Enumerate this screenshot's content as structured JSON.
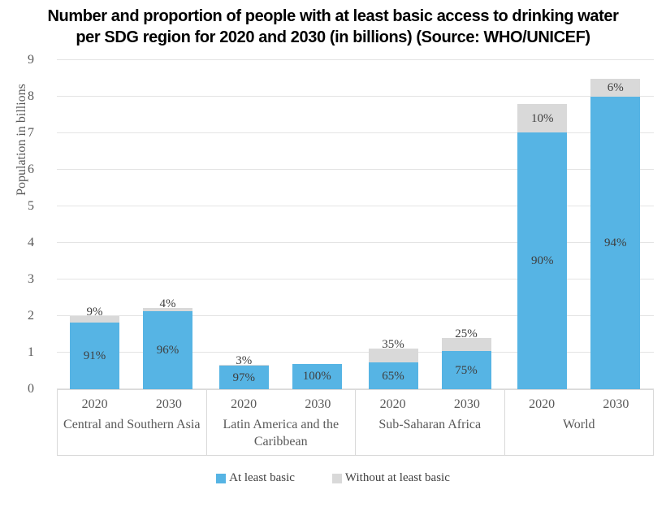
{
  "title_lines": [
    "Number and proportion of people with at least basic access to drinking water",
    "per SDG region for 2020 and 2030 (in billions) (Source: WHO/UNICEF)"
  ],
  "y_axis": {
    "label": "Population in billions"
  },
  "legend": {
    "items": [
      {
        "label": "At least basic",
        "color": "#56b4e4"
      },
      {
        "label": "Without at least basic",
        "color": "#d9d9d9"
      }
    ]
  },
  "colors": {
    "at_least_basic": "#56b4e4",
    "without_at_least_basic": "#d9d9d9",
    "gridline": "#e4e4e4",
    "axis_text": "#595959",
    "label_text": "#3f3f3f"
  },
  "chart_data": {
    "type": "bar",
    "stacked": true,
    "title": "Number and proportion of people with at least basic access to drinking water per SDG region for 2020 and 2030 (in billions) (Source: WHO/UNICEF)",
    "source": "WHO/UNICEF",
    "xlabel": "",
    "ylabel": "Population in billions",
    "ylim": [
      0,
      9
    ],
    "yticks": [
      0,
      1,
      2,
      3,
      4,
      5,
      6,
      7,
      8,
      9
    ],
    "grid": true,
    "legend_position": "bottom",
    "series": [
      "At least basic",
      "Without at least basic"
    ],
    "groups": [
      {
        "region": "Central and Southern Asia",
        "bars": [
          {
            "year": "2020",
            "basic": 1.82,
            "without": 0.18,
            "basic_label": "91%",
            "without_label": "9%"
          },
          {
            "year": "2030",
            "basic": 2.13,
            "without": 0.09,
            "basic_label": "96%",
            "without_label": "4%"
          }
        ]
      },
      {
        "region": "Latin America and the Caribbean",
        "bars": [
          {
            "year": "2020",
            "basic": 0.64,
            "without": 0.02,
            "basic_label": "97%",
            "without_label": "3%"
          },
          {
            "year": "2030",
            "basic": 0.69,
            "without": 0,
            "basic_label": "100%",
            "without_label": ""
          }
        ]
      },
      {
        "region": "Sub-Saharan Africa",
        "bars": [
          {
            "year": "2020",
            "basic": 0.73,
            "without": 0.39,
            "basic_label": "65%",
            "without_label": "35%"
          },
          {
            "year": "2030",
            "basic": 1.04,
            "without": 0.35,
            "basic_label": "75%",
            "without_label": "25%"
          }
        ]
      },
      {
        "region": "World",
        "bars": [
          {
            "year": "2020",
            "basic": 7.02,
            "without": 0.78,
            "basic_label": "90%",
            "without_label": "10%"
          },
          {
            "year": "2030",
            "basic": 7.99,
            "without": 0.51,
            "basic_label": "94%",
            "without_label": "6%"
          }
        ]
      }
    ]
  }
}
